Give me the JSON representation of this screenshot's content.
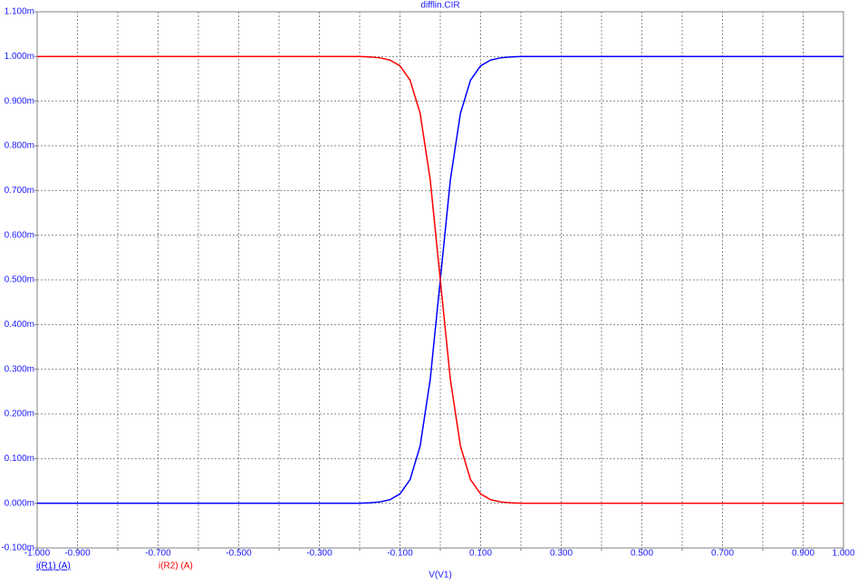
{
  "chart_data": {
    "type": "line",
    "title": "difflin.CIR",
    "x_label": "V(V1)",
    "x": [
      -1,
      -0.2,
      -0.175,
      -0.15,
      -0.125,
      -0.1,
      -0.075,
      -0.05,
      -0.025,
      0,
      0.025,
      0.05,
      0.075,
      0.1,
      0.125,
      0.15,
      0.175,
      0.2,
      1
    ],
    "series": [
      {
        "name": "i(R1) (A)",
        "color": "#0000ff",
        "values": [
          0,
          0,
          1e-06,
          3e-06,
          8e-06,
          2.1e-05,
          5.3e-05,
          0.000128,
          0.000277,
          0.0005,
          0.000724,
          0.000873,
          0.000947,
          0.000979,
          0.000992,
          0.000997,
          0.000999,
          0.001,
          0.001
        ]
      },
      {
        "name": "i(R2) (A)",
        "color": "#ff0000",
        "values": [
          0.001,
          0.001,
          0.000999,
          0.000997,
          0.000992,
          0.000979,
          0.000947,
          0.000873,
          0.000724,
          0.0005,
          0.000277,
          0.000128,
          5.3e-05,
          2.1e-05,
          8e-06,
          3e-06,
          1e-06,
          0,
          0
        ]
      }
    ],
    "xlim": [
      -1,
      1
    ],
    "ylim": [
      -0.0001,
      0.0011
    ],
    "xticks": [
      {
        "value": -1,
        "label": "-1.000"
      },
      {
        "value": -0.9,
        "label": "-0.900"
      },
      {
        "value": -0.8,
        "label": null
      },
      {
        "value": -0.7,
        "label": "-0.700"
      },
      {
        "value": -0.6,
        "label": null
      },
      {
        "value": -0.5,
        "label": "-0.500"
      },
      {
        "value": -0.4,
        "label": null
      },
      {
        "value": -0.3,
        "label": "-0.300"
      },
      {
        "value": -0.2,
        "label": null
      },
      {
        "value": -0.1,
        "label": "-0.100"
      },
      {
        "value": 0,
        "label": null
      },
      {
        "value": 0.1,
        "label": "0.100"
      },
      {
        "value": 0.2,
        "label": null
      },
      {
        "value": 0.3,
        "label": "0.300"
      },
      {
        "value": 0.4,
        "label": null
      },
      {
        "value": 0.5,
        "label": "0.500"
      },
      {
        "value": 0.6,
        "label": null
      },
      {
        "value": 0.7,
        "label": "0.700"
      },
      {
        "value": 0.8,
        "label": null
      },
      {
        "value": 0.9,
        "label": "0.900"
      },
      {
        "value": 1,
        "label": "1.000"
      }
    ],
    "yticks": [
      {
        "value": -0.0001,
        "label": "-0.100m"
      },
      {
        "value": 0,
        "label": "0.000m"
      },
      {
        "value": 0.0001,
        "label": "0.100m"
      },
      {
        "value": 0.0002,
        "label": "0.200m"
      },
      {
        "value": 0.0003,
        "label": "0.300m"
      },
      {
        "value": 0.0004,
        "label": "0.400m"
      },
      {
        "value": 0.0005,
        "label": "0.500m"
      },
      {
        "value": 0.0006,
        "label": "0.600m"
      },
      {
        "value": 0.0007,
        "label": "0.700m"
      },
      {
        "value": 0.0008,
        "label": "0.800m"
      },
      {
        "value": 0.0009,
        "label": "0.900m"
      },
      {
        "value": 0.001,
        "label": "1.000m"
      },
      {
        "value": 0.0011,
        "label": "1.100m"
      }
    ],
    "grid": true
  }
}
